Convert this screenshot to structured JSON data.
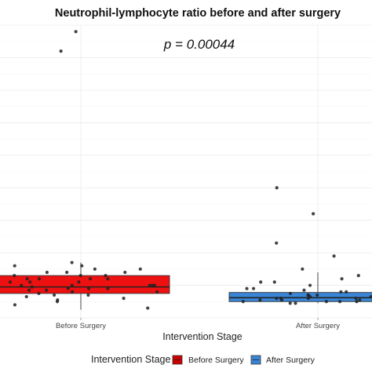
{
  "chart_data": {
    "type": "boxplot",
    "title": "Neutrophil-lymphocyte ratio before and after surgery",
    "annotation": "p = 0.00044",
    "xlabel": "Intervention Stage",
    "ylabel": "",
    "categories": [
      "Before Surgery",
      "After Surgery"
    ],
    "ylim": [
      0,
      9
    ],
    "grid": true,
    "legend_position": "bottom",
    "legend": {
      "title": "Intervention Stage",
      "entries": [
        "Before Surgery",
        "After Surgery"
      ]
    },
    "colors": {
      "Before Surgery": "#ee1111",
      "After Surgery": "#3a85d6"
    },
    "boxes": [
      {
        "category": "Before Surgery",
        "q1": 0.75,
        "median": 0.95,
        "q3": 1.3,
        "whisker_low": 0.25,
        "whisker_high": 1.7
      },
      {
        "category": "After Surgery",
        "q1": 0.5,
        "median": 0.62,
        "q3": 0.78,
        "whisker_low": 0.45,
        "whisker_high": 1.4
      }
    ],
    "points": [
      {
        "category": "Before Surgery",
        "values": [
          8.8,
          8.2,
          1.7,
          1.6,
          1.6,
          1.5,
          1.5,
          1.4,
          1.4,
          1.4,
          1.3,
          1.3,
          1.3,
          1.2,
          1.2,
          1.2,
          1.2,
          1.1,
          1.1,
          1.1,
          1.0,
          1.0,
          1.0,
          1.0,
          1.0,
          0.95,
          0.9,
          0.9,
          0.9,
          0.85,
          0.85,
          0.8,
          0.8,
          0.75,
          0.7,
          0.7,
          0.65,
          0.6,
          0.55,
          0.5,
          0.4,
          0.3
        ]
      },
      {
        "category": "After Surgery",
        "values": [
          4.0,
          3.8,
          3.2,
          2.3,
          1.9,
          1.5,
          1.3,
          1.2,
          1.1,
          1.1,
          1.0,
          0.9,
          0.9,
          0.85,
          0.8,
          0.8,
          0.75,
          0.75,
          0.7,
          0.7,
          0.7,
          0.65,
          0.65,
          0.6,
          0.6,
          0.6,
          0.6,
          0.55,
          0.55,
          0.55,
          0.55,
          0.5,
          0.5,
          0.5,
          0.5,
          0.5,
          0.5,
          0.5,
          0.45,
          0.45
        ]
      }
    ]
  }
}
